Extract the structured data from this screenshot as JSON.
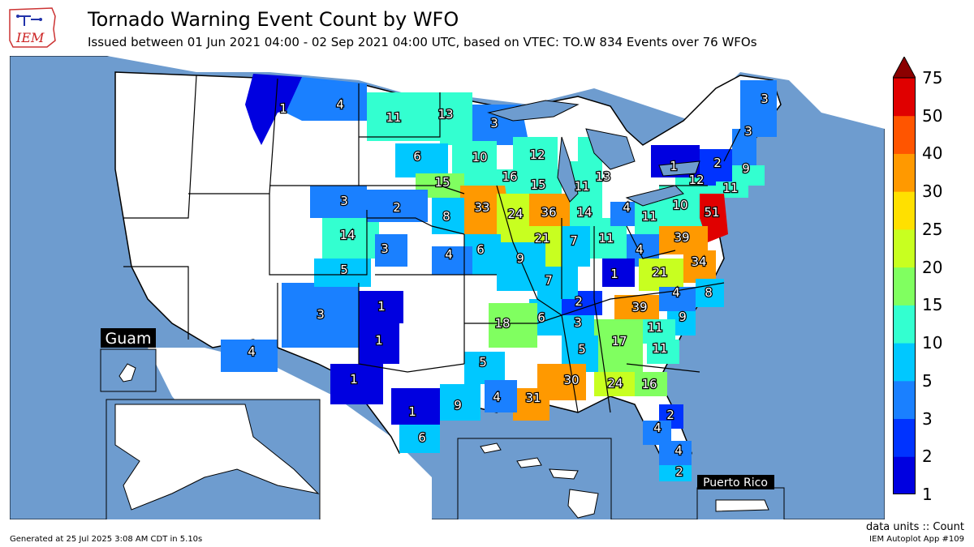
{
  "header": {
    "title": "Tornado Warning Event Count by WFO",
    "subtitle": "Issued between 01 Jun 2021 04:00 - 02 Sep 2021 04:00 UTC, based on VTEC: TO.W   834 Events over 76 WFOs",
    "logo_text": "IEM"
  },
  "insets": {
    "guam_label": "Guam",
    "puerto_rico_label": "Puerto Rico"
  },
  "colorbar": {
    "ticks": [
      "75",
      "50",
      "40",
      "30",
      "25",
      "20",
      "15",
      "10",
      "5",
      "3",
      "2",
      "1"
    ],
    "colors": [
      "#0000e0",
      "#0033ff",
      "#1a80ff",
      "#00c8ff",
      "#33ffd0",
      "#80ff60",
      "#c8ff20",
      "#ffe000",
      "#ff9900",
      "#ff5500",
      "#e00000",
      "#8b0000"
    ],
    "units": "data units :: Count"
  },
  "footer": {
    "generated": "Generated at 25 Jul 2025 3:08 AM CDT in 5.10s",
    "app": "IEM Autoplot App #109"
  },
  "map_labels": [
    {
      "id": "mso",
      "text": "1"
    },
    {
      "id": "tfx",
      "text": "4"
    },
    {
      "id": "bis",
      "text": "11"
    },
    {
      "id": "fgf",
      "text": "13"
    },
    {
      "id": "dlh",
      "text": "3"
    },
    {
      "id": "abr",
      "text": "6"
    },
    {
      "id": "mpx",
      "text": "10"
    },
    {
      "id": "grb",
      "text": "12"
    },
    {
      "id": "arx",
      "text": "16"
    },
    {
      "id": "fsd",
      "text": "15"
    },
    {
      "id": "mkx",
      "text": "15"
    },
    {
      "id": "grr",
      "text": "11"
    },
    {
      "id": "apx",
      "text": "13"
    },
    {
      "id": "buf",
      "text": "1"
    },
    {
      "id": "alb",
      "text": "2"
    },
    {
      "id": "gyx",
      "text": "3"
    },
    {
      "id": "car",
      "text": "3"
    },
    {
      "id": "box",
      "text": "9"
    },
    {
      "id": "bgm",
      "text": "12"
    },
    {
      "id": "okx",
      "text": "11"
    },
    {
      "id": "phi",
      "text": "51"
    },
    {
      "id": "ctp",
      "text": "10"
    },
    {
      "id": "pbz",
      "text": "11"
    },
    {
      "id": "unr",
      "text": "3"
    },
    {
      "id": "lbf",
      "text": "2"
    },
    {
      "id": "oax",
      "text": "8"
    },
    {
      "id": "dmx",
      "text": "33"
    },
    {
      "id": "dvn",
      "text": "24"
    },
    {
      "id": "lot",
      "text": "36"
    },
    {
      "id": "iwx",
      "text": "14"
    },
    {
      "id": "cle",
      "text": "4"
    },
    {
      "id": "ilx",
      "text": "21"
    },
    {
      "id": "ind",
      "text": "7"
    },
    {
      "id": "iln",
      "text": "11"
    },
    {
      "id": "lwx",
      "text": "39"
    },
    {
      "id": "bou",
      "text": "14"
    },
    {
      "id": "gld",
      "text": "3"
    },
    {
      "id": "top",
      "text": "4"
    },
    {
      "id": "eax",
      "text": "6"
    },
    {
      "id": "lsx",
      "text": "9"
    },
    {
      "id": "pah",
      "text": "7"
    },
    {
      "id": "rlx",
      "text": "4"
    },
    {
      "id": "akq",
      "text": "34"
    },
    {
      "id": "gjt",
      "text": "5"
    },
    {
      "id": "jkl",
      "text": "1"
    },
    {
      "id": "rnk",
      "text": "21"
    },
    {
      "id": "mhx",
      "text": "8"
    },
    {
      "id": "abq",
      "text": "3"
    },
    {
      "id": "ama",
      "text": "1"
    },
    {
      "id": "ohx",
      "text": "2"
    },
    {
      "id": "gsp",
      "text": "39"
    },
    {
      "id": "rah",
      "text": "4"
    },
    {
      "id": "ilm",
      "text": "9"
    },
    {
      "id": "lzk",
      "text": "18"
    },
    {
      "id": "meg",
      "text": "6"
    },
    {
      "id": "hun",
      "text": "3"
    },
    {
      "id": "cae",
      "text": "11"
    },
    {
      "id": "chs",
      "text": "11"
    },
    {
      "id": "oun",
      "text": "1"
    },
    {
      "id": "epz",
      "text": "4"
    },
    {
      "id": "bmx",
      "text": "5"
    },
    {
      "id": "ffc",
      "text": "17"
    },
    {
      "id": "maf",
      "text": "1"
    },
    {
      "id": "shv",
      "text": "5"
    },
    {
      "id": "jan",
      "text": "30"
    },
    {
      "id": "tae",
      "text": "24"
    },
    {
      "id": "jax",
      "text": "16"
    },
    {
      "id": "fwd",
      "text": "1"
    },
    {
      "id": "hgx",
      "text": "9"
    },
    {
      "id": "lch",
      "text": "4"
    },
    {
      "id": "lix",
      "text": "31"
    },
    {
      "id": "mlb",
      "text": "2"
    },
    {
      "id": "tbw",
      "text": "4"
    },
    {
      "id": "ewx",
      "text": "6"
    },
    {
      "id": "mfl",
      "text": "4"
    },
    {
      "id": "key",
      "text": "2"
    }
  ]
}
